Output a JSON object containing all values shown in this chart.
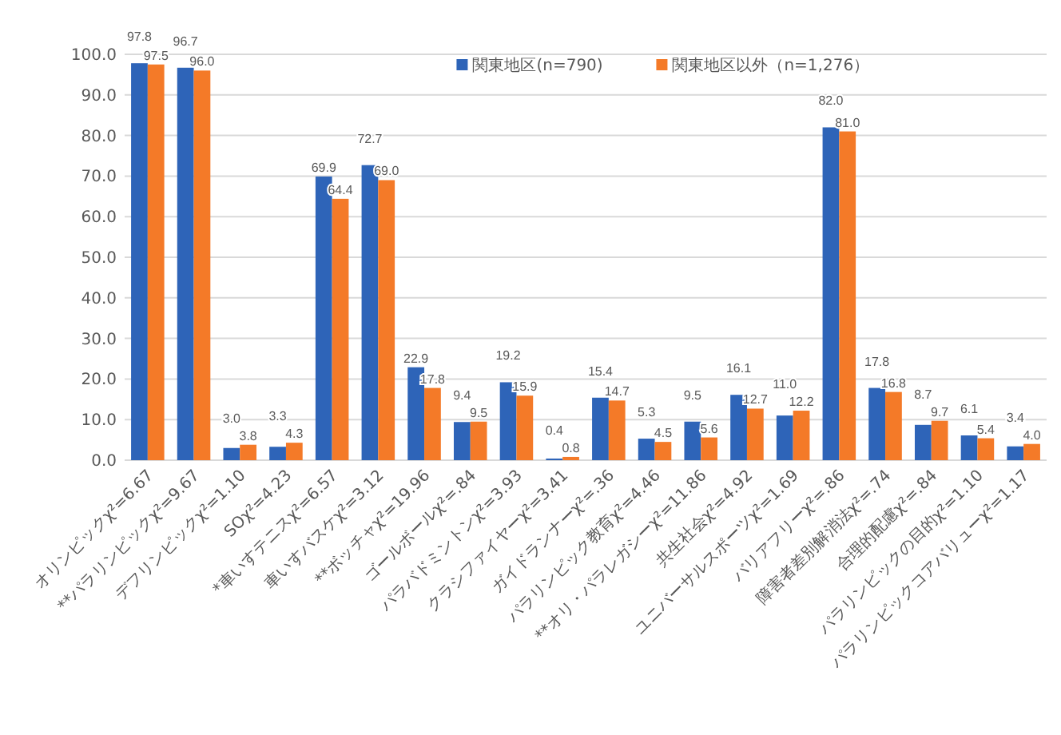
{
  "chart_data": {
    "type": "bar",
    "categories": [
      "オリンピックχ²=6.67",
      "**パラリンピックχ²=9.67",
      "デフリンピックχ²=1.10",
      "SOχ²=4.23",
      "*車いすテニスχ²=6.57",
      "車いすバスケχ²=3.12",
      "**ボッチャχ²=19.96",
      "ゴールボールχ²=.84",
      "パラバドミントンχ²=3.93",
      "クラシファイヤーχ²=3.41",
      "ガイドランナーχ²=.36",
      "パラリンピック教育χ²=4.46",
      "**オリ・パラレガシーχ²=11.86",
      "共生社会χ²=4.92",
      "ユニバーサルスポーツχ²=1.69",
      "バリアフリーχ²=.86",
      "障害者差別解消法χ²=.74",
      "合理的配慮χ²=.84",
      "パラリンピックの目的χ²=1.10",
      "パラリンピックコアバリューχ²=1.17"
    ],
    "series": [
      {
        "name": "関東地区(n=790)",
        "color": "#2e64b8",
        "values": [
          97.8,
          96.7,
          3.0,
          3.3,
          69.9,
          72.7,
          22.9,
          9.4,
          19.2,
          0.4,
          15.4,
          5.3,
          9.5,
          16.1,
          11.0,
          82.0,
          17.8,
          8.7,
          6.1,
          3.4
        ],
        "value_labels": [
          "97.8",
          "96.7",
          "3.0",
          "3.3",
          "69.9",
          "72.7",
          "22.9",
          "9.4",
          "19.2",
          "0.4",
          "15.4",
          "5.3",
          "9.5",
          "16.1",
          "11.0",
          "82.0",
          "17.8",
          "8.7",
          "6.1",
          "3.4"
        ]
      },
      {
        "name": "関東地区以外（n=1,276）",
        "color": "#f47a28",
        "values": [
          97.5,
          96.0,
          3.8,
          4.3,
          64.4,
          69.0,
          17.8,
          9.5,
          15.9,
          0.8,
          14.7,
          4.5,
          5.6,
          12.7,
          12.2,
          81.0,
          16.8,
          9.7,
          5.4,
          4.0
        ],
        "value_labels": [
          "97.5",
          "96.0",
          "3.8",
          "4.3",
          "64.4",
          "69.0",
          "17.8",
          "9.5",
          "15.9",
          "0.8",
          "14.7",
          "4.5",
          "5.6",
          "12.7",
          "12.2",
          "81.0",
          "16.8",
          "9.7",
          "5.4",
          "4.0"
        ]
      }
    ],
    "ylim": [
      0,
      100
    ],
    "yticks": [
      {
        "value": 0,
        "label": "0.0"
      },
      {
        "value": 10,
        "label": "10.0"
      },
      {
        "value": 20,
        "label": "20.0"
      },
      {
        "value": 30,
        "label": "30.0"
      },
      {
        "value": 40,
        "label": "40.0"
      },
      {
        "value": 50,
        "label": "50.0"
      },
      {
        "value": 60,
        "label": "60.0"
      },
      {
        "value": 70,
        "label": "70.0"
      },
      {
        "value": 80,
        "label": "80.0"
      },
      {
        "value": 90,
        "label": "90.0"
      },
      {
        "value": 100,
        "label": "100.0"
      }
    ],
    "grid": "y",
    "legend": "top"
  }
}
